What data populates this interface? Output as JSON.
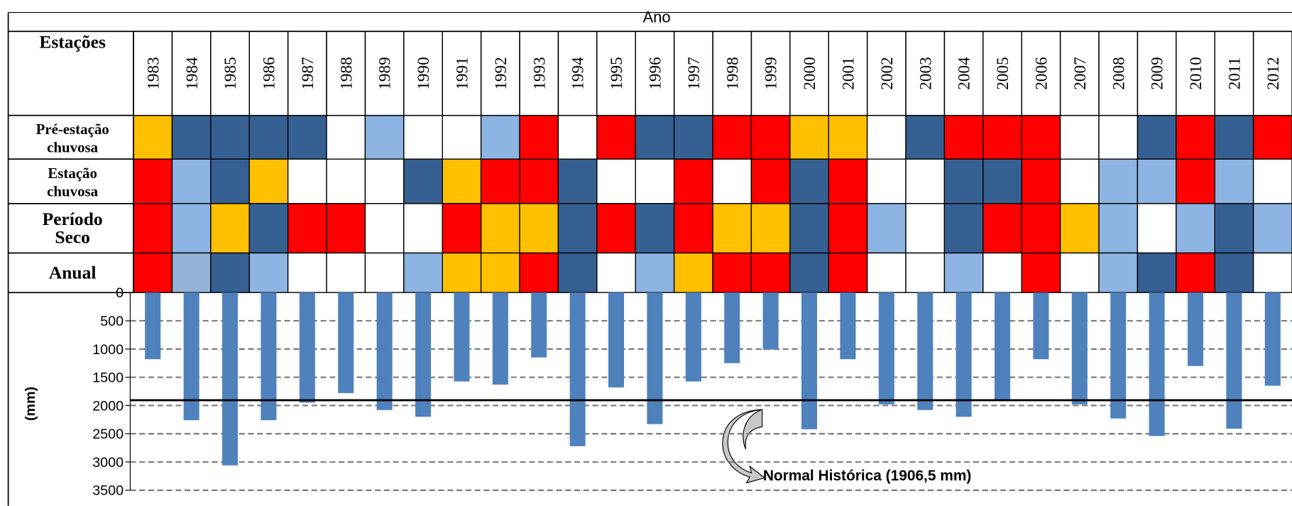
{
  "table": {
    "header": "Ano",
    "corner": "Estações",
    "rows": [
      {
        "lines": [
          "Pré-estação",
          "chuvosa"
        ],
        "colors": [
          "#ffc000",
          "#366092",
          "#366092",
          "#366092",
          "#366092",
          "#ffffff",
          "#8db4e2",
          "#ffffff",
          "#ffffff",
          "#8db4e2",
          "#ff0000",
          "#ffffff",
          "#ff0000",
          "#366092",
          "#366092",
          "#ff0000",
          "#ff0000",
          "#ffc000",
          "#ffc000",
          "#ffffff",
          "#366092",
          "#ff0000",
          "#ff0000",
          "#ff0000",
          "#ffffff",
          "#ffffff",
          "#366092",
          "#ff0000",
          "#366092",
          "#ff0000"
        ]
      },
      {
        "lines": [
          "Estação",
          "chuvosa"
        ],
        "colors": [
          "#ff0000",
          "#8db4e2",
          "#366092",
          "#ffc000",
          "#ffffff",
          "#ffffff",
          "#ffffff",
          "#366092",
          "#ffc000",
          "#ff0000",
          "#ff0000",
          "#366092",
          "#ffffff",
          "#ffffff",
          "#ff0000",
          "#ffffff",
          "#ff0000",
          "#366092",
          "#ff0000",
          "#ffffff",
          "#ffffff",
          "#366092",
          "#366092",
          "#ff0000",
          "#ffffff",
          "#8db4e2",
          "#8db4e2",
          "#ff0000",
          "#8db4e2",
          "#ffffff"
        ]
      },
      {
        "lines": [
          "Período",
          "Seco"
        ],
        "colors": [
          "#ff0000",
          "#8db4e2",
          "#ffc000",
          "#366092",
          "#ff0000",
          "#ff0000",
          "#ffffff",
          "#ffffff",
          "#ff0000",
          "#ffc000",
          "#ffc000",
          "#366092",
          "#ff0000",
          "#366092",
          "#ff0000",
          "#ffc000",
          "#ffc000",
          "#366092",
          "#ff0000",
          "#8db4e2",
          "#ffffff",
          "#366092",
          "#ff0000",
          "#ff0000",
          "#ffc000",
          "#8db4e2",
          "#ffffff",
          "#8db4e2",
          "#366092",
          "#8db4e2"
        ]
      },
      {
        "lines": [
          "Anual"
        ],
        "colors": [
          "#ff0000",
          "#95b3d7",
          "#366092",
          "#8db4e2",
          "#ffffff",
          "#ffffff",
          "#ffffff",
          "#8db4e2",
          "#ffc000",
          "#ffc000",
          "#ff0000",
          "#366092",
          "#ffffff",
          "#8db4e2",
          "#ffc000",
          "#ff0000",
          "#ff0000",
          "#366092",
          "#ff0000",
          "#ffffff",
          "#ffffff",
          "#8db4e2",
          "#ffffff",
          "#ff0000",
          "#ffffff",
          "#8db4e2",
          "#366092",
          "#ff0000",
          "#366092",
          "#ffffff"
        ]
      }
    ]
  },
  "chart_data": {
    "type": "bar",
    "categories": [
      "1983",
      "1984",
      "1985",
      "1986",
      "1987",
      "1988",
      "1989",
      "1990",
      "1991",
      "1992",
      "1993",
      "1994",
      "1995",
      "1996",
      "1997",
      "1998",
      "1999",
      "2000",
      "2001",
      "2002",
      "2003",
      "2004",
      "2005",
      "2006",
      "2007",
      "2008",
      "2009",
      "2010",
      "2011",
      "2012"
    ],
    "values": [
      1180,
      2260,
      3060,
      2260,
      1950,
      1780,
      2080,
      2200,
      1575,
      1630,
      1150,
      2720,
      1680,
      2330,
      1575,
      1250,
      1010,
      2420,
      1180,
      1980,
      2080,
      2200,
      1910,
      1180,
      1980,
      2230,
      2540,
      1300,
      2410,
      1650
    ],
    "color": "#4f81bd",
    "y_label": "(mm)",
    "ylim": [
      0,
      3500
    ],
    "y_inverted": true,
    "yticks": [
      0,
      500,
      1000,
      1500,
      2000,
      2500,
      3000,
      3500
    ],
    "grid": true,
    "reference_line": {
      "value": 1906.5,
      "label": "Normal Histórica (1906,5 mm)"
    }
  }
}
